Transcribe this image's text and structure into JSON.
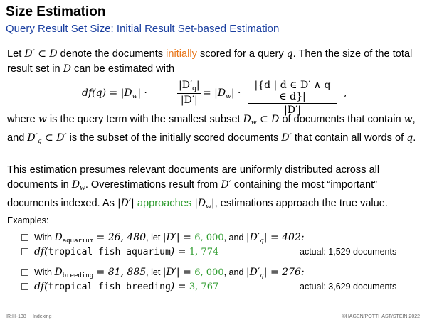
{
  "title": "Size Estimation",
  "subtitle": "Query Result Set Size: Initial Result Set-based Estimation",
  "para1": {
    "t1": "Let ",
    "t2": " denote the documents ",
    "initially": "initially",
    "t3": " scored for a query ",
    "t4": ". Then the size of the total result set in ",
    "t5": " can be estimated with"
  },
  "formula": {
    "lhs": "df(q)  =  |D",
    "num1": "|D′",
    "den1": "|D′|",
    "num2": "|{d | d ∈ D′ ∧ q ∈ d}|",
    "den2": "|D′|"
  },
  "para2": {
    "t1": "where ",
    "t2": " is the query term with the smallest subset ",
    "t3": " of documents that contain ",
    "t4": ", and ",
    "t5": " is the subset of the initially scored documents ",
    "t6": " that contain all words of "
  },
  "para3": {
    "t1": "This estimation presumes relevant documents are uniformly distributed across all documents in ",
    "t2": ". Overestimations result from ",
    "t3": " containing the most “important” documents indexed. As ",
    "approaches": "approaches",
    "t4": ", estimations approach the true value."
  },
  "examples_label": "Examples:",
  "examples": [
    {
      "with": "With ",
      "sub": "aquarium",
      "eq": " = 26, 480",
      "let": ", let ",
      "d": "|D′| = ",
      "dval": "6, 000",
      "and": ", and ",
      "dq": "|D′",
      "dqval": "| = 402:"
    },
    {
      "df": "df(",
      "mono": "tropical fish aquarium",
      "eq": ") = ",
      "val": "1, 774",
      "actual": "actual: 1,529 documents"
    },
    {
      "with": "With ",
      "sub": "breeding",
      "eq": " = 81, 885",
      "let": ", let ",
      "d": "|D′| = ",
      "dval": "6, 000",
      "and": ", and ",
      "dq": "|D′",
      "dqval": "| = 276:"
    },
    {
      "df": "df(",
      "mono": "tropical fish breeding",
      "eq": ") = ",
      "val": "3, 767",
      "actual": "actual: 3,629 documents"
    }
  ],
  "footer": {
    "page": "IR:III-138",
    "section": "Indexing",
    "copyright": "©HAGEN/POTTHAST/STEIN 2022"
  },
  "colors": {
    "subtitle": "#1a3fa0",
    "highlight_orange": "#e8761a",
    "highlight_green": "#2e9b2e"
  }
}
